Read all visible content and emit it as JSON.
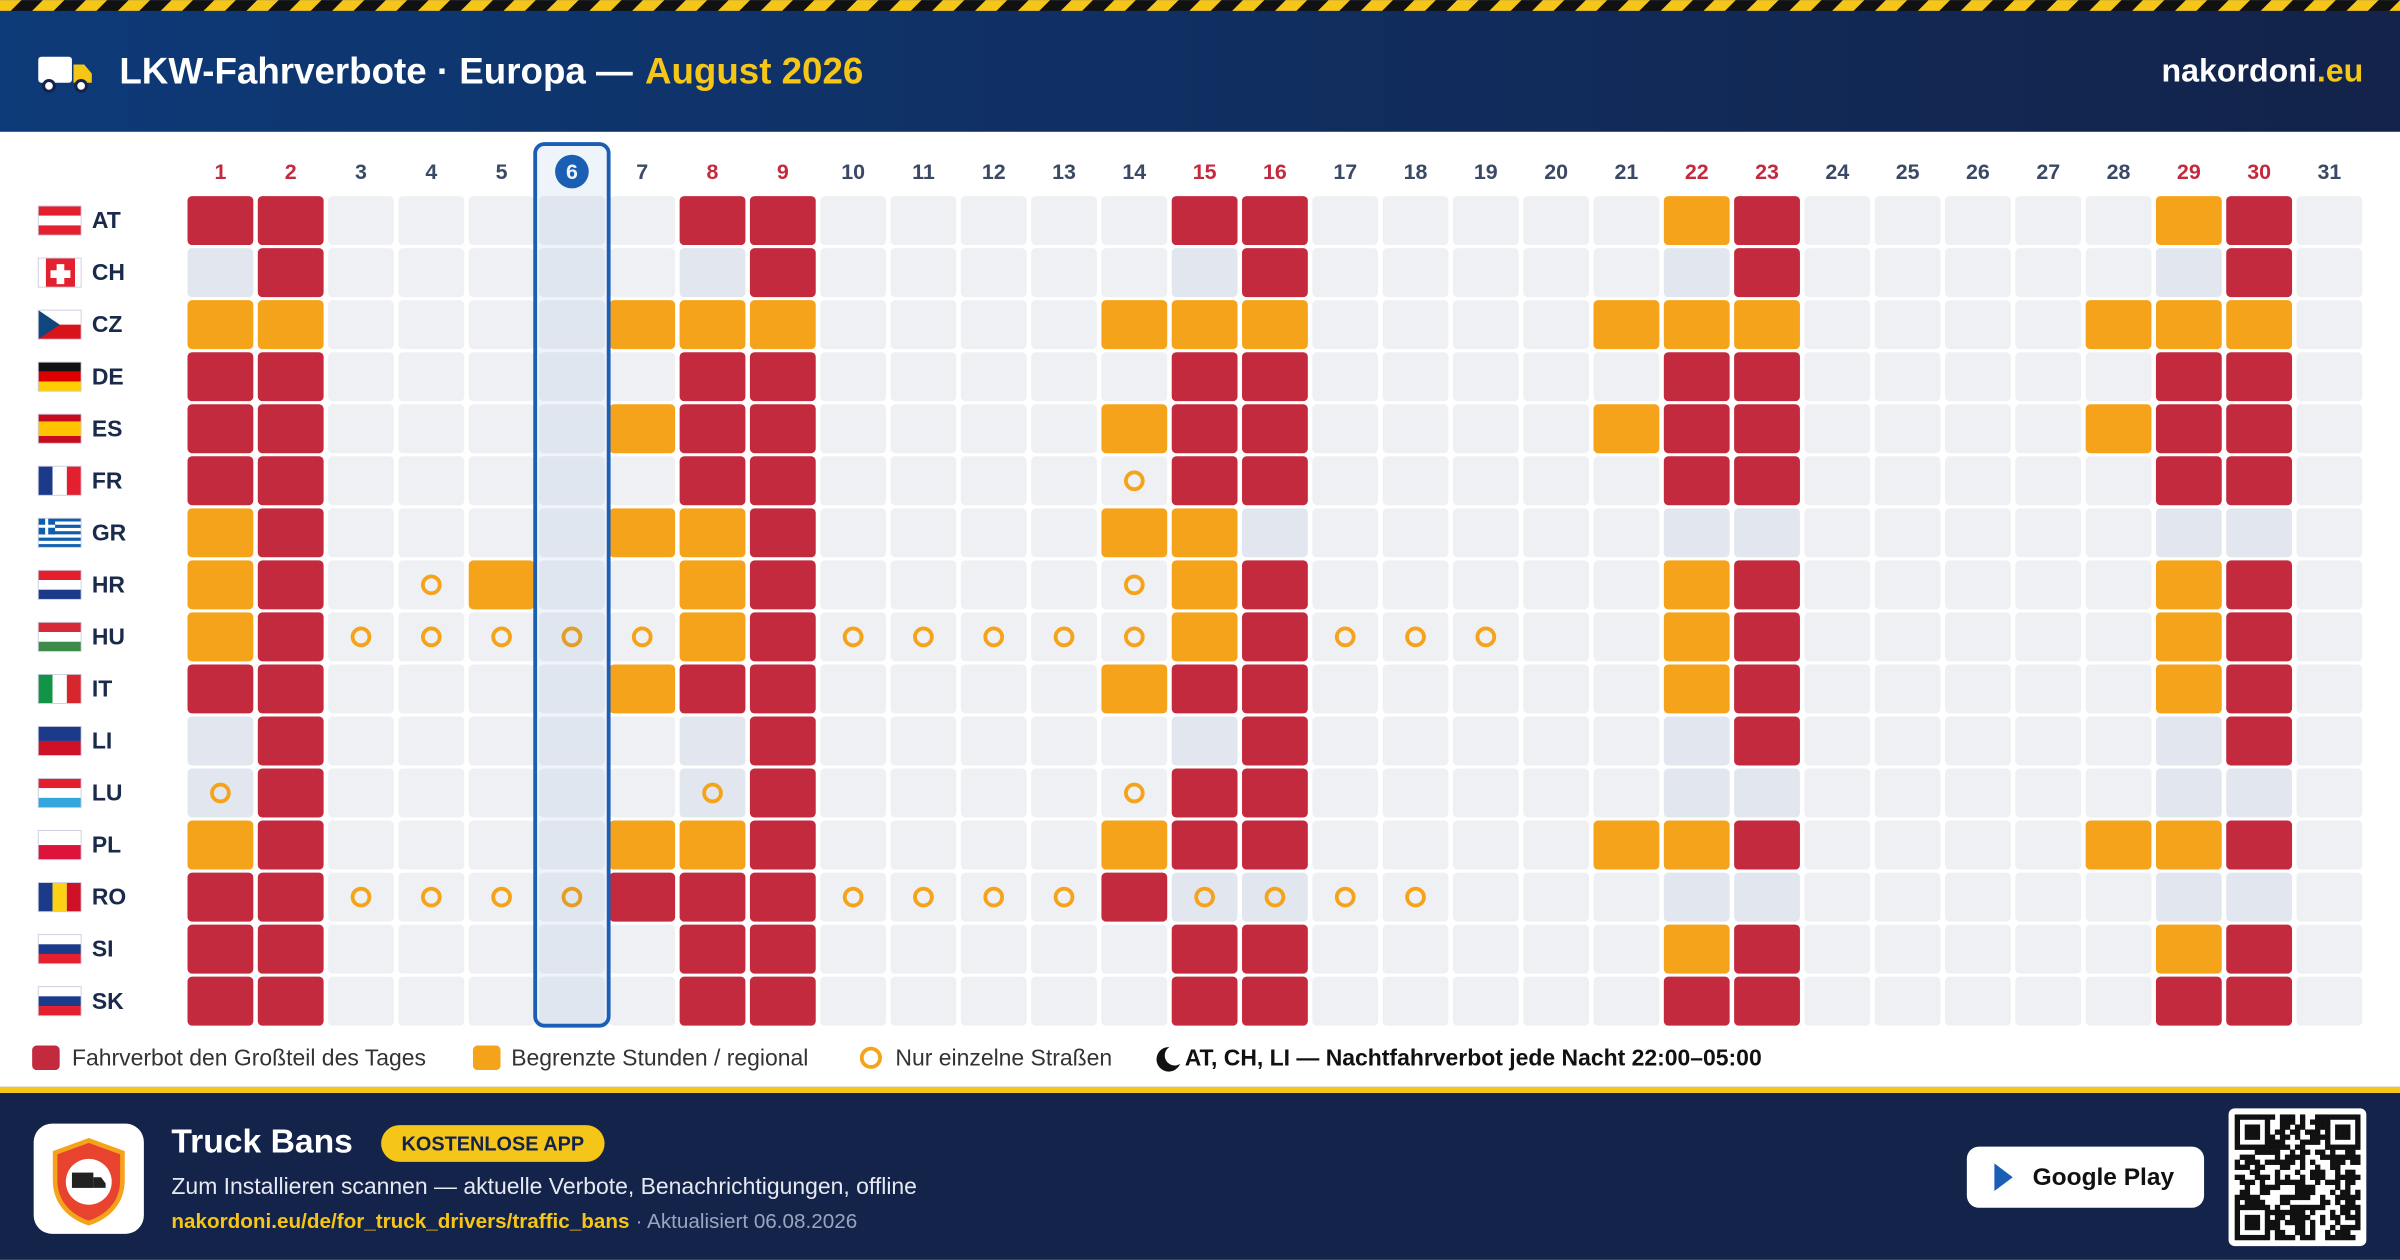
{
  "header": {
    "title": "LKW-Fahrverbote · Europa —",
    "month": "August 2026",
    "site": "nakordoni",
    "site_tld": ".eu"
  },
  "calendar": {
    "days": [
      1,
      2,
      3,
      4,
      5,
      6,
      7,
      8,
      9,
      10,
      11,
      12,
      13,
      14,
      15,
      16,
      17,
      18,
      19,
      20,
      21,
      22,
      23,
      24,
      25,
      26,
      27,
      28,
      29,
      30,
      31
    ],
    "weekends": [
      1,
      2,
      8,
      9,
      15,
      16,
      22,
      23,
      29,
      30
    ],
    "today": 6,
    "countries": [
      {
        "code": "AT",
        "ban": [
          1,
          2,
          8,
          9,
          15,
          16,
          23,
          30
        ],
        "limited": [
          22,
          29
        ],
        "roads": []
      },
      {
        "code": "CH",
        "ban": [
          2,
          9,
          16,
          23,
          30
        ],
        "limited": [],
        "roads": []
      },
      {
        "code": "CZ",
        "ban": [],
        "limited": [
          1,
          2,
          7,
          8,
          9,
          14,
          15,
          16,
          21,
          22,
          23,
          28,
          29,
          30
        ],
        "roads": []
      },
      {
        "code": "DE",
        "ban": [
          1,
          2,
          8,
          9,
          15,
          16,
          22,
          23,
          29,
          30
        ],
        "limited": [],
        "roads": []
      },
      {
        "code": "ES",
        "ban": [
          1,
          2,
          8,
          9,
          15,
          16,
          22,
          23,
          29,
          30
        ],
        "limited": [
          7,
          14,
          21,
          28
        ],
        "roads": []
      },
      {
        "code": "FR",
        "ban": [
          1,
          2,
          8,
          9,
          15,
          16,
          22,
          23,
          29,
          30
        ],
        "limited": [],
        "roads": [
          14
        ]
      },
      {
        "code": "GR",
        "ban": [
          2,
          9
        ],
        "limited": [
          1,
          7,
          8,
          14,
          15
        ],
        "roads": []
      },
      {
        "code": "HR",
        "ban": [
          2,
          9,
          16,
          23,
          30
        ],
        "limited": [
          1,
          5,
          8,
          15,
          22,
          29
        ],
        "roads": [
          4,
          14
        ]
      },
      {
        "code": "HU",
        "ban": [
          2,
          9,
          16,
          23,
          30
        ],
        "limited": [
          1,
          8,
          15,
          22,
          29
        ],
        "roads": [
          3,
          4,
          5,
          6,
          7,
          10,
          11,
          12,
          13,
          14,
          17,
          18,
          19
        ]
      },
      {
        "code": "IT",
        "ban": [
          1,
          2,
          8,
          9,
          15,
          16,
          23,
          30
        ],
        "limited": [
          7,
          14,
          22,
          29
        ],
        "roads": []
      },
      {
        "code": "LI",
        "ban": [
          2,
          9,
          16,
          23,
          30
        ],
        "limited": [],
        "roads": []
      },
      {
        "code": "LU",
        "ban": [
          2,
          9,
          15,
          16
        ],
        "limited": [],
        "roads": [
          1,
          8,
          14
        ]
      },
      {
        "code": "PL",
        "ban": [
          2,
          9,
          15,
          16,
          23,
          30
        ],
        "limited": [
          1,
          7,
          8,
          14,
          21,
          22,
          28,
          29
        ],
        "roads": []
      },
      {
        "code": "RO",
        "ban": [
          1,
          2,
          7,
          8,
          9,
          14
        ],
        "limited": [],
        "roads": [
          3,
          4,
          5,
          6,
          10,
          11,
          12,
          13,
          15,
          16,
          17,
          18
        ]
      },
      {
        "code": "SI",
        "ban": [
          1,
          2,
          8,
          9,
          15,
          16,
          23,
          30
        ],
        "limited": [
          22,
          29
        ],
        "roads": []
      },
      {
        "code": "SK",
        "ban": [
          1,
          2,
          8,
          9,
          15,
          16,
          22,
          23,
          29,
          30
        ],
        "limited": [],
        "roads": []
      }
    ]
  },
  "legend": {
    "ban": "Fahrverbot den Großteil des Tages",
    "limited": "Begrenzte Stunden / regional",
    "roads": "Nur einzelne Straßen",
    "night": "AT, CH, LI — Nachtfahrverbot jede Nacht 22:00–05:00"
  },
  "footer": {
    "app_name": "Truck Bans",
    "badge": "KOSTENLOSE APP",
    "description": "Zum Installieren scannen — aktuelle Verbote, Benachrichtigungen, offline",
    "link": "nakordoni.eu/de/for_truck_drivers/traffic_bans",
    "updated": "· Aktualisiert 06.08.2026",
    "store": "Google Play"
  }
}
